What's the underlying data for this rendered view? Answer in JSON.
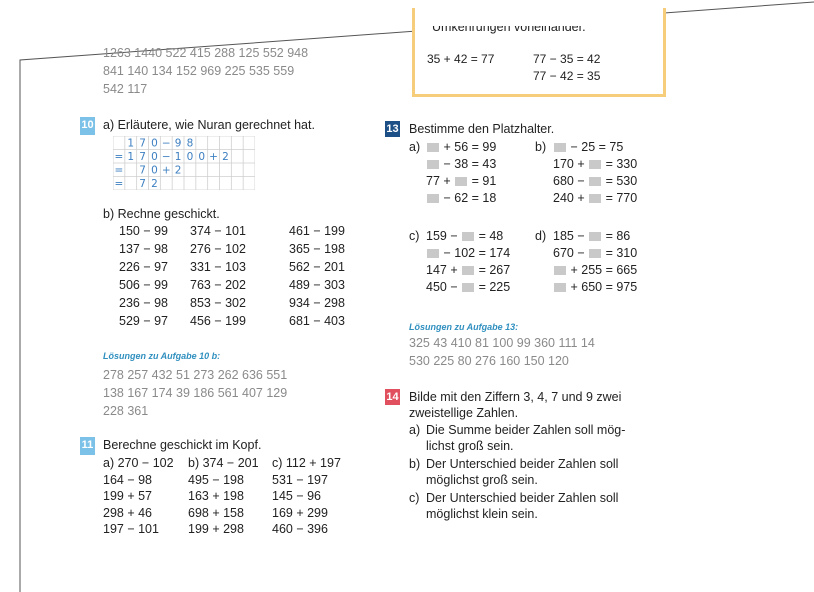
{
  "top_numbers": [
    "1263  1440  522  415  288  125  552  948",
    "841  140  134  152  969  225  535  559",
    "542  117"
  ],
  "box": {
    "header_partial": "Umkehrungen voneinander.",
    "eq1": "35 + 42 = 77",
    "eq2": "77 − 35 = 42",
    "eq3": "77 − 42 = 35"
  },
  "task10": {
    "number": "10",
    "a_text": "a) Erläutere, wie Nuran gerechnet hat.",
    "grid_rows": [
      [
        "",
        "1",
        "7",
        "0",
        "−",
        "9",
        "8",
        "",
        "",
        "",
        "",
        ""
      ],
      [
        "=",
        "1",
        "7",
        "0",
        "−",
        "1",
        "0",
        "0",
        "+",
        "2",
        "",
        ""
      ],
      [
        "=",
        "",
        "7",
        "0",
        "+",
        "2",
        "",
        "",
        "",
        "",
        "",
        ""
      ],
      [
        "=",
        "",
        "7",
        "2",
        "",
        "",
        "",
        "",
        "",
        "",
        "",
        ""
      ]
    ],
    "b_text": "b) Rechne geschickt.",
    "col1": [
      "150 − 99",
      "137 − 98",
      "226 − 97",
      "506 − 99",
      "236 − 98",
      "529 − 97"
    ],
    "col2": [
      "374 − 101",
      "276 − 102",
      "331 − 103",
      "763 − 202",
      "853 − 302",
      "456 − 199"
    ],
    "col3": [
      "461 − 199",
      "365 − 198",
      "562 − 201",
      "489 − 303",
      "934 − 298",
      "681 − 403"
    ],
    "sol_title": "Lösungen zu Aufgabe 10 b:",
    "sol_lines": [
      "278  257  432  51  273  262  636  551",
      "138  167  174  39  186  561  407  129",
      "228  361"
    ]
  },
  "task11": {
    "number": "11",
    "text": "Berechne geschickt im Kopf.",
    "col_a": [
      "a) 270 − 102",
      "164 −   98",
      "199 +   57",
      "298 +   46",
      "197 − 101"
    ],
    "col_b": [
      "b) 374 − 201",
      "495 − 198",
      "163 + 198",
      "698 + 158",
      "199 + 298"
    ],
    "col_c": [
      "c)  112 + 197",
      "531 − 197",
      "145 −   96",
      "169 + 299",
      "460 − 396"
    ]
  },
  "task13": {
    "number": "13",
    "text": "Bestimme den Platzhalter.",
    "a_label": "a)",
    "a": [
      [
        "",
        "+ 56 = 99"
      ],
      [
        "",
        "− 38 = 43"
      ],
      [
        "77 +",
        "= 91"
      ],
      [
        "",
        "− 62 = 18"
      ]
    ],
    "b_label": "b)",
    "b": [
      [
        "",
        "− 25 = 75"
      ],
      [
        "170 +",
        "= 330"
      ],
      [
        "680 −",
        "= 530"
      ],
      [
        "240 +",
        "= 770"
      ]
    ],
    "c_label": "c)",
    "c": [
      [
        "159 −",
        "= 48"
      ],
      [
        "",
        "− 102 = 174"
      ],
      [
        "147 +",
        "= 267"
      ],
      [
        "450 −",
        "= 225"
      ]
    ],
    "d_label": "d)",
    "d": [
      [
        "185 −",
        "= 86"
      ],
      [
        "670 −",
        "= 310"
      ],
      [
        "",
        "+ 255 = 665"
      ],
      [
        "",
        "+ 650 = 975"
      ]
    ],
    "sol_title": "Lösungen zu Aufgabe 13:",
    "sol_lines": [
      "325  43  410  81  100  99  360  111  14",
      "530  225  80  276  160  150  120"
    ]
  },
  "task14": {
    "number": "14",
    "lines": [
      "Bilde mit den Ziffern 3, 4, 7 und 9 zwei",
      "zweistellige Zahlen."
    ],
    "items": [
      [
        "a)",
        "Die Summe beider Zahlen soll mög-",
        "lichst groß sein."
      ],
      [
        "b)",
        "Der Unterschied beider Zahlen soll",
        "möglichst groß sein."
      ],
      [
        "c)",
        "Der Unterschied beider Zahlen soll",
        "möglichst klein sein."
      ]
    ]
  },
  "colors": {
    "light_blue": "#7cc2e8",
    "dark_blue": "#1c4f86",
    "red": "#e0505e",
    "box_border": "#f5cd7b",
    "solution_title": "#2f8fbf"
  }
}
